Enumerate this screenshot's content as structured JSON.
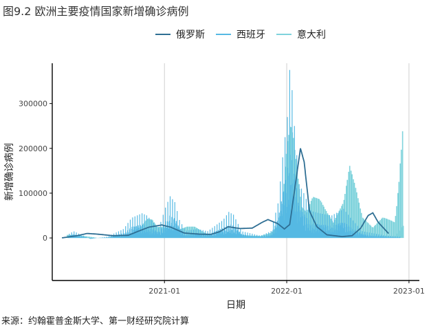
{
  "title": "图9.2 欧洲主要疫情国家新增确诊病例",
  "source": "来源：约翰霍普金斯大学、第一财经研究院计算",
  "chart_data": {
    "type": "line",
    "title": "图9.2 欧洲主要疫情国家新增确诊病例",
    "xlabel": "日期",
    "ylabel": "新增确诊病例",
    "x_ticks": [
      "2021-01",
      "2022-01",
      "2023-01"
    ],
    "y_ticks": [
      0,
      100000,
      200000,
      300000
    ],
    "y_tick_labels": [
      "0",
      "100000",
      "200000",
      "300000"
    ],
    "xlim": [
      "2020-02",
      "2023-02"
    ],
    "ylim": [
      -95000,
      390000
    ],
    "grid": "vertical-major",
    "legend_position": "top",
    "series": [
      {
        "name": "俄罗斯",
        "color": "#2e6e93",
        "style": "smooth",
        "x": [
          "2020-03-01",
          "2020-04-15",
          "2020-05-15",
          "2020-06-15",
          "2020-08-01",
          "2020-09-15",
          "2020-10-15",
          "2020-11-15",
          "2020-12-24",
          "2021-01-20",
          "2021-03-01",
          "2021-04-15",
          "2021-05-20",
          "2021-06-15",
          "2021-07-10",
          "2021-08-15",
          "2021-09-20",
          "2021-10-20",
          "2021-11-06",
          "2021-12-05",
          "2021-12-25",
          "2022-01-10",
          "2022-01-25",
          "2022-02-11",
          "2022-02-22",
          "2022-03-10",
          "2022-04-01",
          "2022-05-01",
          "2022-06-15",
          "2022-07-15",
          "2022-08-10",
          "2022-09-01",
          "2022-09-15",
          "2022-10-01",
          "2022-11-01"
        ],
        "y": [
          200,
          5000,
          10000,
          8500,
          5000,
          6000,
          15000,
          24000,
          29000,
          24000,
          11000,
          8500,
          8000,
          14000,
          25000,
          21000,
          22000,
          35000,
          41000,
          32000,
          20000,
          30000,
          110000,
          200000,
          170000,
          60000,
          25000,
          7000,
          3000,
          5000,
          22000,
          50000,
          56000,
          35000,
          10000
        ]
      },
      {
        "name": "西班牙",
        "color": "#55b9e3",
        "style": "spikes",
        "x": [
          "2020-03-20",
          "2020-04-05",
          "2020-05-25",
          "2020-07-15",
          "2020-09-01",
          "2020-09-25",
          "2020-10-26",
          "2020-11-10",
          "2020-12-15",
          "2021-01-05",
          "2021-01-18",
          "2021-02-01",
          "2021-02-15",
          "2021-03-05",
          "2021-04-10",
          "2021-05-10",
          "2021-06-25",
          "2021-07-12",
          "2021-07-26",
          "2021-08-20",
          "2021-10-15",
          "2021-11-15",
          "2021-12-07",
          "2021-12-20",
          "2022-01-03",
          "2022-01-10",
          "2022-01-17",
          "2022-01-24",
          "2022-02-07",
          "2022-02-21",
          "2022-03-15",
          "2022-04-10",
          "2022-05-15",
          "2022-06-20",
          "2022-07-11",
          "2022-08-15",
          "2022-09-20",
          "2022-10-25",
          "2022-12-05"
        ],
        "y": [
          8000,
          15000,
          -2000,
          3000,
          20000,
          45000,
          55000,
          50000,
          22000,
          70000,
          93000,
          80000,
          40000,
          16000,
          20000,
          15000,
          40000,
          58000,
          52000,
          15000,
          5000,
          15000,
          80000,
          180000,
          270000,
          375000,
          330000,
          250000,
          120000,
          100000,
          60000,
          55000,
          50000,
          65000,
          45000,
          15000,
          10000,
          5000,
          3000
        ]
      },
      {
        "name": "意大利",
        "color": "#7fd3dc",
        "style": "bars",
        "x": [
          "2020-03-15",
          "2020-04-15",
          "2020-06-15",
          "2020-08-15",
          "2020-10-01",
          "2020-10-20",
          "2020-11-10",
          "2020-11-25",
          "2020-12-10",
          "2021-01-10",
          "2021-02-01",
          "2021-03-10",
          "2021-04-01",
          "2021-05-01",
          "2021-06-01",
          "2021-07-01",
          "2021-08-01",
          "2021-09-01",
          "2021-10-15",
          "2021-11-15",
          "2021-12-15",
          "2022-01-02",
          "2022-01-12",
          "2022-01-20",
          "2022-02-01",
          "2022-02-15",
          "2022-03-01",
          "2022-03-20",
          "2022-04-10",
          "2022-05-01",
          "2022-05-20",
          "2022-06-20",
          "2022-07-08",
          "2022-07-25",
          "2022-08-15",
          "2022-09-15",
          "2022-10-15",
          "2022-11-05",
          "2022-11-20",
          "2022-12-01",
          "2022-12-15"
        ],
        "y": [
          6000,
          5500,
          300,
          500,
          3000,
          20000,
          37000,
          36000,
          22000,
          20000,
          14000,
          22000,
          22000,
          10000,
          2000,
          5000,
          7000,
          5000,
          4000,
          10000,
          30000,
          180000,
          220000,
          200000,
          130000,
          60000,
          50000,
          80000,
          75000,
          50000,
          30000,
          70000,
          140000,
          100000,
          40000,
          20000,
          40000,
          35000,
          30000,
          100000,
          225000
        ]
      }
    ]
  }
}
